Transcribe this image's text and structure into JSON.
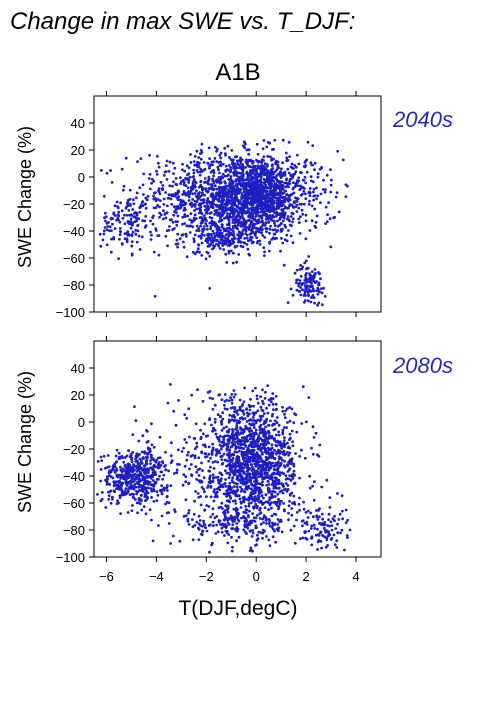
{
  "title": "Change in max SWE vs. T_DJF:",
  "subtitle": "A1B",
  "colors": {
    "points": "#1f1fbf",
    "period_label": "#2a2ab0"
  },
  "chart_data": [
    {
      "type": "scatter",
      "period_label": "2040s",
      "ylabel": "SWE Change (%)",
      "xlabel": "",
      "xlim": [
        -6.5,
        5
      ],
      "ylim": [
        -100,
        60
      ],
      "x_ticks": [
        -6,
        -4,
        -2,
        0,
        2,
        4
      ],
      "x_tick_labels": [],
      "y_ticks": [
        40,
        20,
        0,
        -20,
        -40,
        -60,
        -80,
        -100
      ],
      "y_tick_labels": [
        "40",
        "20",
        "0",
        "−20",
        "−40",
        "−60",
        "−80",
        "−100"
      ],
      "grid": false,
      "clusters": [
        {
          "x": [
            -5,
            3.4
          ],
          "y": [
            -50,
            20
          ]
        },
        {
          "x": [
            -3.5,
            2
          ],
          "y": [
            -45,
            18
          ]
        },
        {
          "x": [
            -1,
            1.5
          ],
          "y": [
            -40,
            15
          ]
        },
        {
          "x": [
            1.5,
            2.8
          ],
          "y": [
            -95,
            -65
          ]
        },
        {
          "x": [
            -6.2,
            -4.2
          ],
          "y": [
            -55,
            -15
          ]
        },
        {
          "x": [
            -3,
            0.5
          ],
          "y": [
            -60,
            -30
          ]
        }
      ],
      "summary": {
        "x_range": [
          -6.4,
          3.7
        ],
        "y_range": [
          -95,
          28
        ]
      }
    },
    {
      "type": "scatter",
      "period_label": "2080s",
      "ylabel": "SWE Change (%)",
      "xlabel": "T(DJF,degC)",
      "xlim": [
        -6.5,
        5
      ],
      "ylim": [
        -100,
        60
      ],
      "x_ticks": [
        -6,
        -4,
        -2,
        0,
        2,
        4
      ],
      "x_tick_labels": [
        "−6",
        "−4",
        "−2",
        "0",
        "2",
        "4"
      ],
      "y_ticks": [
        40,
        20,
        0,
        -20,
        -40,
        -60,
        -80,
        -100
      ],
      "y_tick_labels": [
        "40",
        "20",
        "0",
        "−20",
        "−40",
        "−60",
        "−80",
        "−100"
      ],
      "grid": false,
      "clusters": [
        {
          "x": [
            -3.5,
            2
          ],
          "y": [
            -80,
            20
          ]
        },
        {
          "x": [
            -1.5,
            1.5
          ],
          "y": [
            -80,
            15
          ]
        },
        {
          "x": [
            -6.2,
            -3.5
          ],
          "y": [
            -60,
            -20
          ]
        },
        {
          "x": [
            1.5,
            3.6
          ],
          "y": [
            -97,
            -60
          ]
        },
        {
          "x": [
            -3,
            1
          ],
          "y": [
            -90,
            -60
          ]
        }
      ],
      "summary": {
        "x_range": [
          -6.4,
          3.8
        ],
        "y_range": [
          -97,
          28
        ]
      }
    }
  ]
}
